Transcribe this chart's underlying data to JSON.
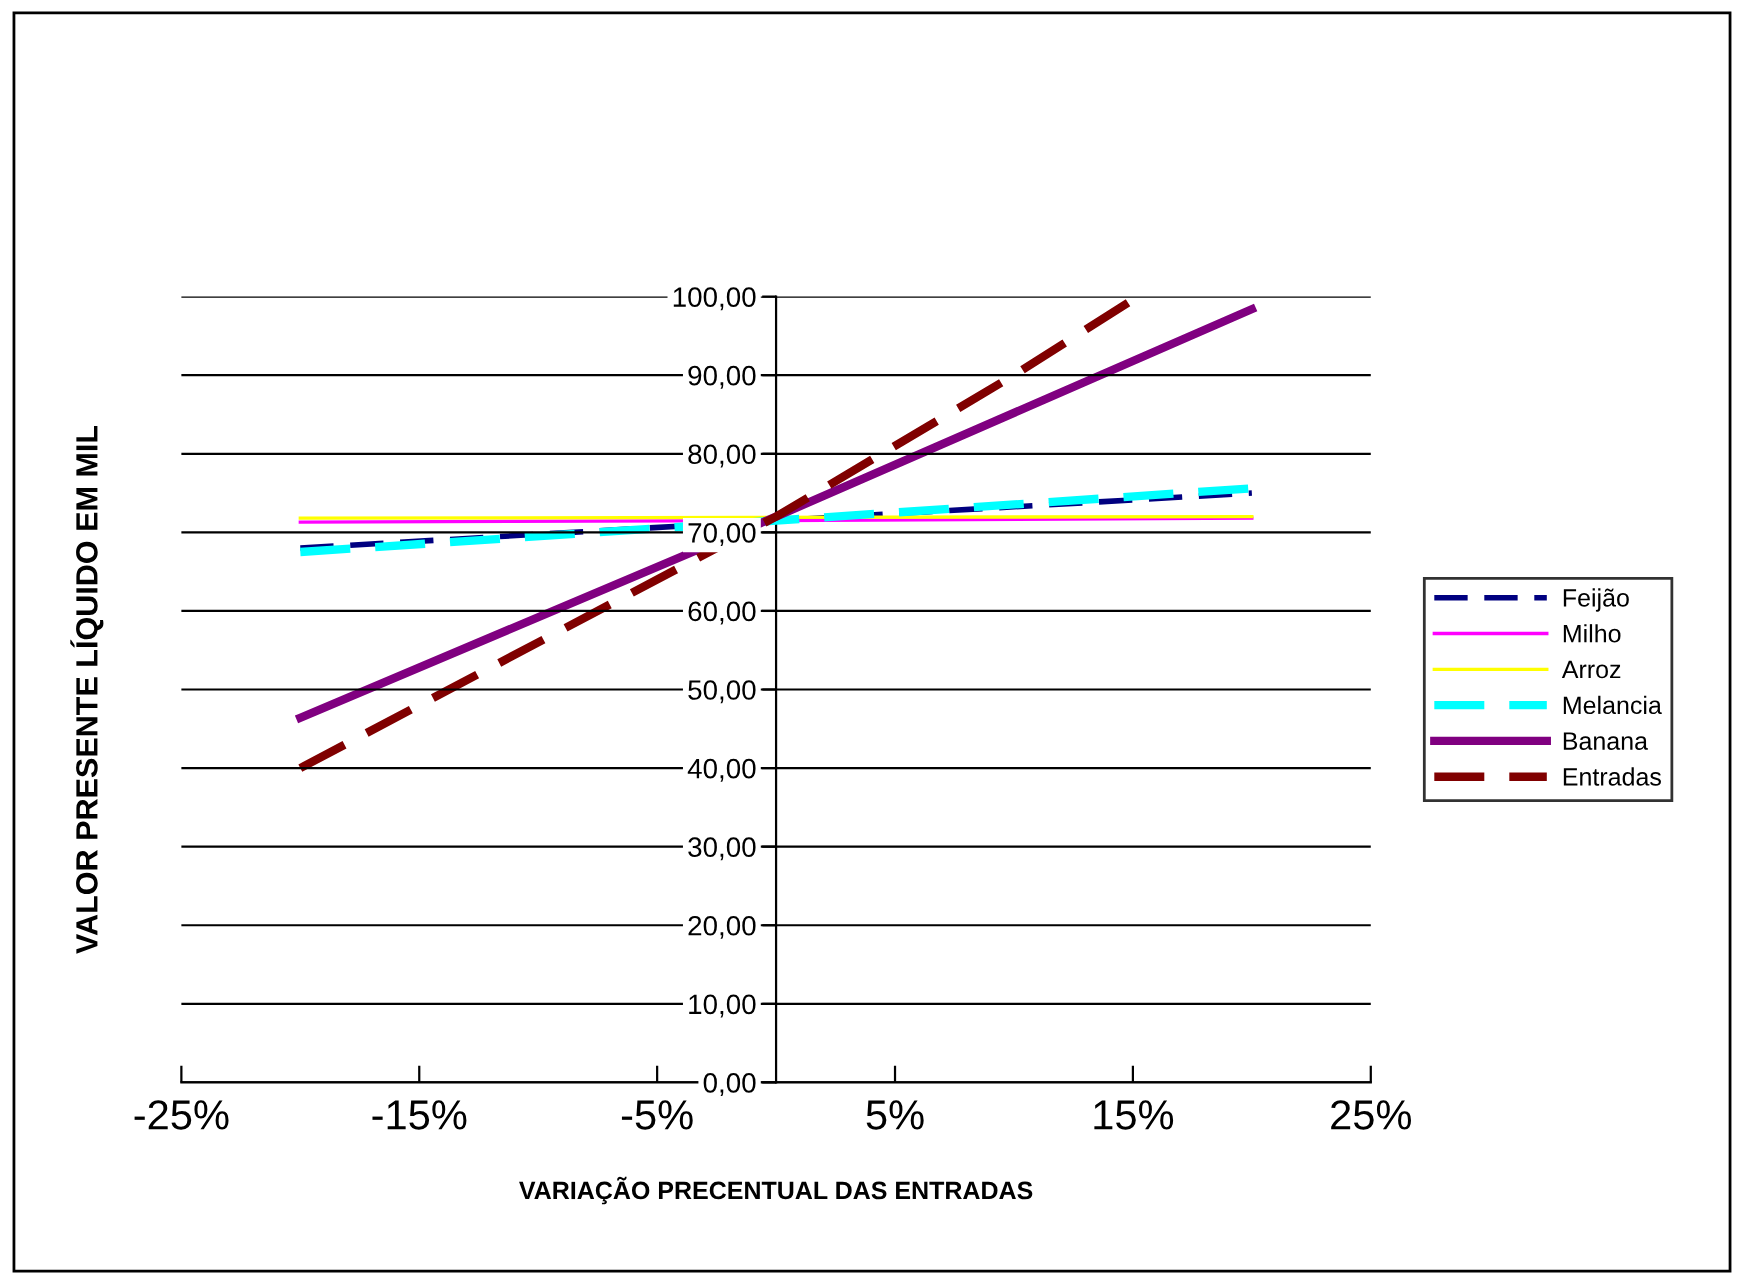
{
  "chart_data": {
    "type": "line",
    "xlabel": "VARIAÇÃO PRECENTUAL DAS ENTRADAS",
    "ylabel": "VALOR PRESENTE LÍQUIDO EM MIL",
    "xlim": [
      -25,
      25
    ],
    "xticks": [
      {
        "value": -25,
        "label": "-25%"
      },
      {
        "value": -15,
        "label": "-15%"
      },
      {
        "value": -5,
        "label": "-5%"
      },
      {
        "value": 5,
        "label": "5%"
      },
      {
        "value": 15,
        "label": "15%"
      },
      {
        "value": 25,
        "label": "25%"
      }
    ],
    "ylim": [
      0,
      100
    ],
    "yticks": [
      {
        "value": 0,
        "label": "0,00"
      },
      {
        "value": 10,
        "label": "10,00"
      },
      {
        "value": 20,
        "label": "20,00"
      },
      {
        "value": 30,
        "label": "30,00"
      },
      {
        "value": 40,
        "label": "40,00"
      },
      {
        "value": 50,
        "label": "50,00"
      },
      {
        "value": 60,
        "label": "60,00"
      },
      {
        "value": 70,
        "label": "70,00"
      },
      {
        "value": 80,
        "label": "80,00"
      },
      {
        "value": 90,
        "label": "90,00"
      },
      {
        "value": 100,
        "label": "100,00"
      }
    ],
    "grid": "y",
    "legend": "right",
    "marker": "none",
    "series": [
      {
        "name": "Feijão",
        "color": "#000080",
        "line_style": "dashed",
        "x": [
          -20,
          0,
          20
        ],
        "values": [
          68.0,
          71.5,
          75.0
        ]
      },
      {
        "name": "Milho",
        "color": "#ff00ff",
        "line_style": "solid",
        "x": [
          -20,
          0,
          20
        ],
        "values": [
          71.3,
          71.5,
          71.8
        ]
      },
      {
        "name": "Arroz",
        "color": "#ffff00",
        "line_style": "solid",
        "x": [
          -20,
          20
        ],
        "values": [
          71.8,
          72.0
        ]
      },
      {
        "name": "Melancia",
        "color": "#00ffff",
        "line_style": "dashed",
        "x": [
          -20,
          0,
          20
        ],
        "values": [
          67.5,
          71.5,
          75.6
        ]
      },
      {
        "name": "Banana",
        "color": "#800080",
        "line_style": "solid",
        "x": [
          -20,
          0,
          20
        ],
        "values": [
          46.4,
          72.0,
          98.4
        ]
      },
      {
        "name": "Entradas",
        "color": "#800000",
        "line_style": "dashed",
        "x": [
          -20,
          -10,
          0,
          10,
          15.2
        ],
        "values": [
          40,
          56,
          72,
          90,
          100
        ]
      }
    ]
  }
}
